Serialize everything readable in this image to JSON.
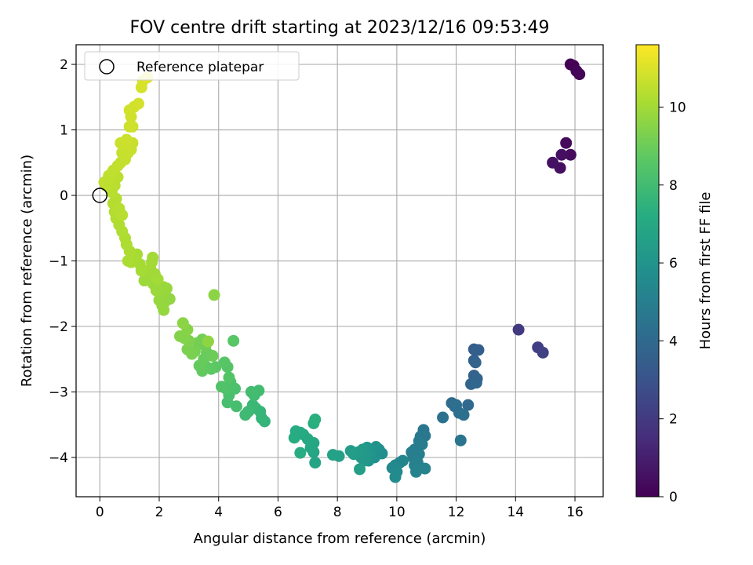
{
  "chart_data": {
    "type": "scatter",
    "title": "FOV centre drift starting at 2023/12/16 09:53:49",
    "xlabel": "Angular distance from reference (arcmin)",
    "ylabel": "Rotation from reference (arcmin)",
    "xlim": [
      -0.8,
      16.95
    ],
    "ylim": [
      -4.6,
      2.3
    ],
    "xticks": [
      0,
      2,
      4,
      6,
      8,
      10,
      12,
      14,
      16
    ],
    "yticks": [
      -4,
      -3,
      -2,
      -1,
      0,
      1,
      2
    ],
    "xtick_labels": [
      "0",
      "2",
      "4",
      "6",
      "8",
      "10",
      "12",
      "14",
      "16"
    ],
    "ytick_labels": [
      "−4",
      "−3",
      "−2",
      "−1",
      "0",
      "1",
      "2"
    ],
    "grid": true,
    "legend": {
      "position": "top-left",
      "entries": [
        {
          "label": "Reference platepar",
          "marker": "open-circle"
        }
      ]
    },
    "reference_point": {
      "x": 0,
      "y": 0
    },
    "colorbar": {
      "label": "Hours from first FF file",
      "range": [
        0,
        11.6
      ],
      "ticks": [
        0,
        2,
        4,
        6,
        8,
        10
      ],
      "tick_labels": [
        "0",
        "2",
        "4",
        "6",
        "8",
        "10"
      ],
      "colormap": "viridis"
    },
    "points": [
      [
        15.85,
        2.0,
        0.0
      ],
      [
        15.95,
        1.98,
        0.05
      ],
      [
        16.05,
        1.9,
        0.1
      ],
      [
        16.15,
        1.85,
        0.15
      ],
      [
        15.7,
        0.8,
        0.3
      ],
      [
        15.85,
        0.62,
        0.35
      ],
      [
        15.55,
        0.62,
        0.45
      ],
      [
        15.5,
        0.42,
        0.5
      ],
      [
        15.25,
        0.5,
        0.55
      ],
      [
        14.1,
        -2.05,
        2.0
      ],
      [
        14.75,
        -2.32,
        2.2
      ],
      [
        14.92,
        -2.4,
        2.3
      ],
      [
        12.6,
        -2.35,
        3.5
      ],
      [
        12.75,
        -2.36,
        3.55
      ],
      [
        12.6,
        -2.52,
        3.6
      ],
      [
        12.65,
        -2.55,
        3.65
      ],
      [
        12.6,
        -2.75,
        3.7
      ],
      [
        12.7,
        -2.8,
        3.75
      ],
      [
        12.5,
        -2.88,
        3.8
      ],
      [
        12.68,
        -2.86,
        3.85
      ],
      [
        12.4,
        -3.2,
        4.0
      ],
      [
        11.85,
        -3.17,
        4.1
      ],
      [
        12.0,
        -3.2,
        4.15
      ],
      [
        11.95,
        -3.22,
        4.2
      ],
      [
        12.1,
        -3.32,
        4.25
      ],
      [
        12.25,
        -3.35,
        4.3
      ],
      [
        11.55,
        -3.39,
        4.4
      ],
      [
        12.15,
        -3.74,
        4.5
      ],
      [
        10.9,
        -3.58,
        4.6
      ],
      [
        10.95,
        -3.67,
        4.65
      ],
      [
        10.8,
        -3.68,
        4.7
      ],
      [
        10.75,
        -3.75,
        4.75
      ],
      [
        10.85,
        -3.8,
        4.8
      ],
      [
        10.6,
        -3.88,
        4.85
      ],
      [
        10.5,
        -3.92,
        4.9
      ],
      [
        10.75,
        -3.95,
        4.95
      ],
      [
        10.55,
        -4.0,
        5.0
      ],
      [
        10.7,
        -4.08,
        5.05
      ],
      [
        10.6,
        -4.12,
        5.1
      ],
      [
        10.95,
        -4.17,
        5.15
      ],
      [
        10.65,
        -4.22,
        5.2
      ],
      [
        10.2,
        -4.05,
        5.3
      ],
      [
        10.1,
        -4.08,
        5.35
      ],
      [
        9.95,
        -4.12,
        5.4
      ],
      [
        9.85,
        -4.16,
        5.45
      ],
      [
        10.0,
        -4.22,
        5.5
      ],
      [
        9.95,
        -4.3,
        5.55
      ],
      [
        9.5,
        -3.94,
        5.7
      ],
      [
        9.4,
        -3.88,
        5.75
      ],
      [
        9.3,
        -3.95,
        5.8
      ],
      [
        9.25,
        -4.0,
        5.85
      ],
      [
        9.3,
        -3.84,
        5.9
      ],
      [
        9.15,
        -3.92,
        5.95
      ],
      [
        9.1,
        -3.98,
        6.0
      ],
      [
        9.05,
        -4.05,
        6.05
      ],
      [
        9.0,
        -3.85,
        6.1
      ],
      [
        8.95,
        -3.95,
        6.15
      ],
      [
        8.9,
        -4.05,
        6.2
      ],
      [
        8.85,
        -3.88,
        6.25
      ],
      [
        8.8,
        -4.0,
        6.3
      ],
      [
        8.7,
        -3.92,
        6.35
      ],
      [
        8.55,
        -3.95,
        6.4
      ],
      [
        8.45,
        -3.9,
        6.45
      ],
      [
        8.75,
        -4.18,
        6.5
      ],
      [
        8.05,
        -3.98,
        6.6
      ],
      [
        7.85,
        -3.96,
        6.65
      ],
      [
        7.25,
        -4.08,
        6.8
      ],
      [
        7.2,
        -3.92,
        6.85
      ],
      [
        7.1,
        -3.85,
        6.9
      ],
      [
        7.2,
        -3.78,
        6.95
      ],
      [
        7.0,
        -3.72,
        7.0
      ],
      [
        6.85,
        -3.65,
        7.05
      ],
      [
        6.75,
        -3.62,
        7.1
      ],
      [
        6.6,
        -3.6,
        7.15
      ],
      [
        6.55,
        -3.7,
        7.2
      ],
      [
        6.75,
        -3.93,
        7.25
      ],
      [
        7.2,
        -3.48,
        7.3
      ],
      [
        7.25,
        -3.42,
        7.35
      ],
      [
        5.55,
        -3.45,
        7.6
      ],
      [
        5.45,
        -3.4,
        7.65
      ],
      [
        5.4,
        -3.3,
        7.7
      ],
      [
        5.25,
        -3.25,
        7.75
      ],
      [
        5.15,
        -3.2,
        7.8
      ],
      [
        5.0,
        -3.3,
        7.85
      ],
      [
        4.9,
        -3.35,
        7.9
      ],
      [
        5.2,
        -3.05,
        7.95
      ],
      [
        5.35,
        -2.98,
        8.0
      ],
      [
        5.1,
        -3.0,
        8.05
      ],
      [
        4.6,
        -3.22,
        8.1
      ],
      [
        4.3,
        -3.16,
        8.15
      ],
      [
        4.35,
        -3.05,
        8.2
      ],
      [
        4.55,
        -2.95,
        8.25
      ],
      [
        4.4,
        -2.85,
        8.3
      ],
      [
        4.25,
        -2.95,
        8.35
      ],
      [
        4.1,
        -2.92,
        8.4
      ],
      [
        4.35,
        -2.78,
        8.45
      ],
      [
        4.3,
        -2.62,
        8.5
      ],
      [
        4.2,
        -2.55,
        8.55
      ],
      [
        4.5,
        -2.22,
        8.6
      ],
      [
        3.9,
        -2.62,
        8.65
      ],
      [
        3.75,
        -2.65,
        8.7
      ],
      [
        3.6,
        -2.62,
        8.75
      ],
      [
        3.45,
        -2.68,
        8.8
      ],
      [
        3.35,
        -2.6,
        8.85
      ],
      [
        3.5,
        -2.5,
        8.9
      ],
      [
        3.6,
        -2.4,
        8.95
      ],
      [
        3.8,
        -2.45,
        9.0
      ],
      [
        3.55,
        -2.3,
        9.05
      ],
      [
        3.45,
        -2.2,
        9.1
      ],
      [
        3.3,
        -2.25,
        9.15
      ],
      [
        3.2,
        -2.38,
        9.2
      ],
      [
        3.1,
        -2.42,
        9.25
      ],
      [
        2.95,
        -2.35,
        9.3
      ],
      [
        3.0,
        -2.22,
        9.35
      ],
      [
        2.85,
        -2.18,
        9.4
      ],
      [
        2.7,
        -2.15,
        9.45
      ],
      [
        2.95,
        -2.05,
        9.5
      ],
      [
        2.8,
        -1.95,
        9.55
      ],
      [
        3.85,
        -1.52,
        9.6
      ],
      [
        3.65,
        -2.23,
        9.65
      ],
      [
        2.35,
        -1.58,
        9.7
      ],
      [
        2.2,
        -1.62,
        9.72
      ],
      [
        2.1,
        -1.68,
        9.74
      ],
      [
        2.15,
        -1.75,
        9.76
      ],
      [
        2.0,
        -1.6,
        9.78
      ],
      [
        2.05,
        -1.5,
        9.8
      ],
      [
        2.25,
        -1.42,
        9.82
      ],
      [
        2.15,
        -1.4,
        9.84
      ],
      [
        1.9,
        -1.45,
        9.86
      ],
      [
        1.8,
        -1.35,
        9.88
      ],
      [
        1.65,
        -1.28,
        9.9
      ],
      [
        1.5,
        -1.3,
        9.92
      ],
      [
        1.55,
        -1.18,
        9.94
      ],
      [
        1.7,
        -1.12,
        9.96
      ],
      [
        1.85,
        -1.2,
        9.98
      ],
      [
        1.95,
        -1.28,
        10.0
      ],
      [
        1.75,
        -1.02,
        10.02
      ],
      [
        1.78,
        -0.95,
        10.04
      ],
      [
        1.4,
        -1.15,
        10.06
      ],
      [
        1.35,
        -1.05,
        10.08
      ],
      [
        1.25,
        -0.9,
        10.1
      ],
      [
        1.15,
        -0.95,
        10.12
      ],
      [
        1.05,
        -1.02,
        10.14
      ],
      [
        0.95,
        -1.0,
        10.16
      ],
      [
        1.0,
        -0.85,
        10.18
      ],
      [
        0.9,
        -0.75,
        10.2
      ],
      [
        0.85,
        -0.65,
        10.22
      ],
      [
        0.75,
        -0.55,
        10.24
      ],
      [
        0.65,
        -0.45,
        10.26
      ],
      [
        0.55,
        -0.35,
        10.28
      ],
      [
        0.5,
        -0.25,
        10.3
      ],
      [
        0.45,
        -0.12,
        10.32
      ],
      [
        0.55,
        -0.05,
        10.34
      ],
      [
        0.65,
        -0.2,
        10.36
      ],
      [
        0.75,
        -0.3,
        10.38
      ],
      [
        0.4,
        0.05,
        10.4
      ],
      [
        0.5,
        0.15,
        10.42
      ],
      [
        0.6,
        0.28,
        10.44
      ],
      [
        0.3,
        0.18,
        10.46
      ],
      [
        0.2,
        0.15,
        10.48
      ],
      [
        0.15,
        0.2,
        10.5
      ],
      [
        0.3,
        0.3,
        10.52
      ],
      [
        0.45,
        0.38,
        10.54
      ],
      [
        0.6,
        0.45,
        10.56
      ],
      [
        0.7,
        0.5,
        10.58
      ],
      [
        0.85,
        0.55,
        10.6
      ],
      [
        0.75,
        0.65,
        10.62
      ],
      [
        0.95,
        0.65,
        10.64
      ],
      [
        1.05,
        0.7,
        10.66
      ],
      [
        1.1,
        0.8,
        10.68
      ],
      [
        0.85,
        0.78,
        10.7
      ],
      [
        0.7,
        0.8,
        10.72
      ],
      [
        0.9,
        0.85,
        10.74
      ],
      [
        1.0,
        1.05,
        10.76
      ],
      [
        1.1,
        1.05,
        10.78
      ],
      [
        1.05,
        1.2,
        10.8
      ],
      [
        1.0,
        1.3,
        10.82
      ],
      [
        1.15,
        1.35,
        10.84
      ],
      [
        1.3,
        1.4,
        10.86
      ],
      [
        1.4,
        1.65,
        10.9
      ],
      [
        1.45,
        1.75,
        10.95
      ],
      [
        1.6,
        1.8,
        11.0
      ]
    ]
  }
}
